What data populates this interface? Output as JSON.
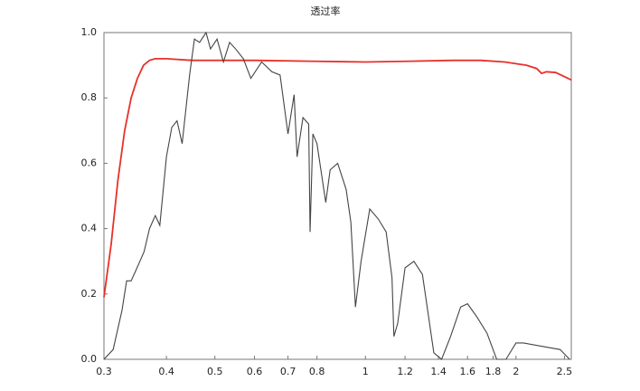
{
  "chart_data": {
    "type": "line",
    "title": "透过率",
    "log_x": true,
    "grid": false,
    "xlim": [
      0.3,
      2.58
    ],
    "ylim": [
      0,
      1
    ],
    "xticks": [
      0.3,
      0.4,
      0.5,
      0.6,
      0.7,
      0.8,
      1,
      1.2,
      1.4,
      1.6,
      1.8,
      2,
      2.5
    ],
    "yticks": [
      {
        "value": 0,
        "label": "0.0"
      },
      0.2,
      0.4,
      0.6,
      0.8,
      {
        "value": 1,
        "label": "1.0"
      }
    ],
    "series": [
      {
        "color": "#e8302a",
        "x": [
          0.3,
          0.31,
          0.32,
          0.33,
          0.34,
          0.35,
          0.36,
          0.37,
          0.38,
          0.4,
          0.45,
          0.5,
          0.6,
          0.8,
          1.0,
          1.2,
          1.5,
          1.7,
          1.9,
          2.1,
          2.2,
          2.25,
          2.3,
          2.4,
          2.5,
          2.58
        ],
        "values": [
          0.19,
          0.35,
          0.55,
          0.7,
          0.8,
          0.86,
          0.9,
          0.915,
          0.92,
          0.92,
          0.915,
          0.915,
          0.915,
          0.912,
          0.91,
          0.912,
          0.915,
          0.915,
          0.91,
          0.9,
          0.89,
          0.875,
          0.88,
          0.878,
          0.865,
          0.855
        ]
      },
      {
        "color": "#444444",
        "x": [
          0.3,
          0.313,
          0.326,
          0.333,
          0.34,
          0.347,
          0.354,
          0.361,
          0.37,
          0.38,
          0.388,
          0.4,
          0.41,
          0.42,
          0.43,
          0.445,
          0.455,
          0.466,
          0.48,
          0.49,
          0.505,
          0.52,
          0.535,
          0.55,
          0.57,
          0.59,
          0.62,
          0.65,
          0.675,
          0.7,
          0.72,
          0.73,
          0.75,
          0.77,
          0.775,
          0.785,
          0.8,
          0.833,
          0.85,
          0.88,
          0.915,
          0.935,
          0.955,
          0.98,
          1.02,
          1.06,
          1.1,
          1.13,
          1.14,
          1.16,
          1.2,
          1.25,
          1.3,
          1.37,
          1.42,
          1.48,
          1.55,
          1.6,
          1.67,
          1.75,
          1.83,
          1.91,
          2.0,
          2.07,
          2.25,
          2.45,
          2.56
        ],
        "values": [
          0,
          0.03,
          0.15,
          0.24,
          0.24,
          0.27,
          0.3,
          0.33,
          0.4,
          0.44,
          0.41,
          0.62,
          0.71,
          0.73,
          0.66,
          0.87,
          0.98,
          0.97,
          1.0,
          0.95,
          0.98,
          0.91,
          0.97,
          0.95,
          0.92,
          0.86,
          0.91,
          0.88,
          0.87,
          0.69,
          0.81,
          0.62,
          0.74,
          0.72,
          0.39,
          0.69,
          0.66,
          0.48,
          0.58,
          0.6,
          0.52,
          0.42,
          0.16,
          0.3,
          0.46,
          0.43,
          0.39,
          0.25,
          0.07,
          0.11,
          0.28,
          0.3,
          0.26,
          0.02,
          0,
          0.07,
          0.16,
          0.17,
          0.13,
          0.08,
          0,
          0,
          0.05,
          0.05,
          0.04,
          0.03,
          0
        ]
      }
    ]
  }
}
